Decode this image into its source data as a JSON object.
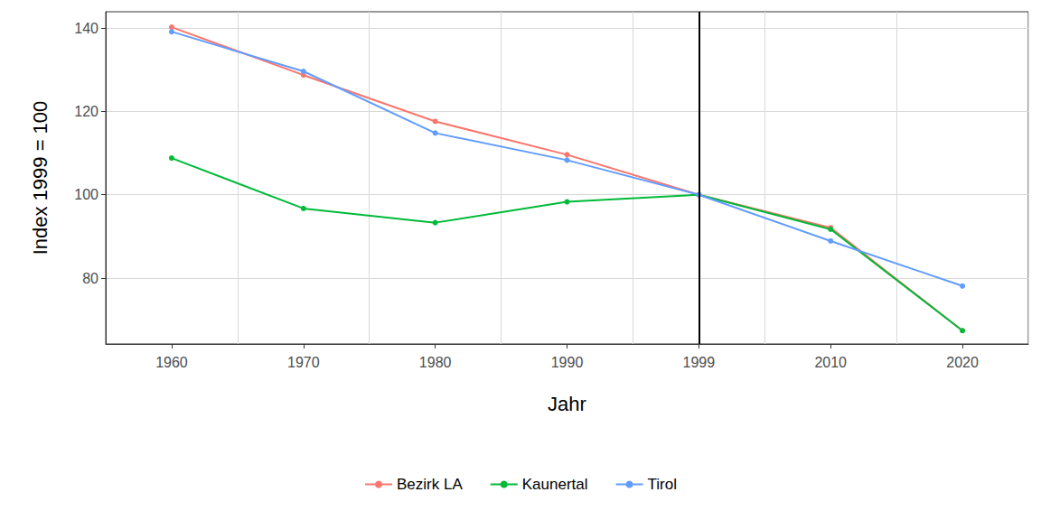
{
  "chart_data": {
    "type": "line",
    "x_label": "Jahr",
    "y_label": "Index 1999 = 100",
    "categories": [
      "1960",
      "1970",
      "1980",
      "1990",
      "1999",
      "2010",
      "2020"
    ],
    "series": [
      {
        "name": "Bezirk LA",
        "color": "#F8766D",
        "values": [
          140.2,
          128.7,
          117.6,
          109.6,
          100,
          92.1,
          67.4
        ]
      },
      {
        "name": "Kaunertal",
        "color": "#00BA38",
        "values": [
          108.8,
          96.7,
          93.3,
          98.3,
          100,
          91.7,
          67.4
        ]
      },
      {
        "name": "Tirol",
        "color": "#619CFF",
        "values": [
          139.1,
          129.6,
          114.8,
          108.3,
          100,
          88.9,
          78.1
        ]
      }
    ],
    "ylim": [
      64.2,
      143.9
    ],
    "yticks": [
      80,
      100,
      120,
      140
    ],
    "grid": true,
    "legend": "bottom",
    "marker": "circle",
    "reference_lines": [
      {
        "x": "1999",
        "color": "#000000"
      }
    ]
  }
}
